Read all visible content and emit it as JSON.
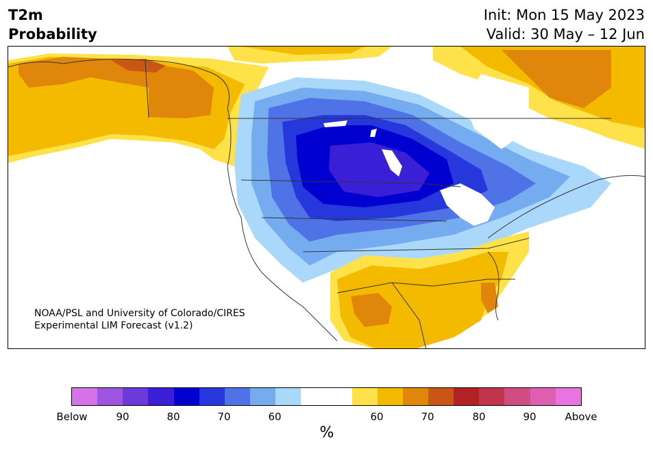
{
  "title": {
    "line1": "T2m",
    "line2": "Probability",
    "init": "Init: Mon 15 May 2023",
    "valid": "Valid: 30 May – 12 Jun"
  },
  "credit": {
    "line1": "NOAA/PSL and University of Colorado/CIRES",
    "line2": "Experimental LIM Forecast (v1.2)"
  },
  "colorbar": {
    "unit": "%",
    "colors": [
      "#d672ea",
      "#9e55e2",
      "#6e39da",
      "#3a1fd6",
      "#0000d0",
      "#2637dc",
      "#4f72e6",
      "#75acf0",
      "#aad8fb",
      "#ffffff",
      "#ffffff",
      "#ffe14a",
      "#f4ba00",
      "#e0870b",
      "#c95614",
      "#b22222",
      "#c2344c",
      "#d14c80",
      "#de5fb2",
      "#ea73e2"
    ],
    "tick_labels": [
      "Below",
      "90",
      "80",
      "70",
      "60",
      "60",
      "70",
      "80",
      "90",
      "Above"
    ]
  },
  "legend_colors": {
    "blue_light": "#aad8fb",
    "blue_mid": "#75acf0",
    "blue": "#4f72e6",
    "blue_strong": "#2637dc",
    "blue_deep": "#0000d0",
    "purple": "#3a1fd6",
    "yellow": "#ffe14a",
    "gold": "#f4ba00",
    "orange": "#e0870b",
    "rust": "#c95614"
  }
}
